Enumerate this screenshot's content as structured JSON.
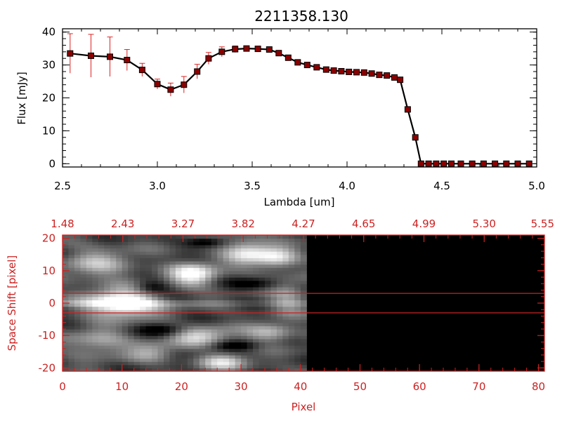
{
  "chart_data": [
    {
      "type": "line",
      "title": "2211358.130",
      "xlabel": "Lambda [um]",
      "ylabel": "Flux [mJy]",
      "xlim": [
        2.5,
        5.0
      ],
      "ylim": [
        -1,
        41
      ],
      "x_ticks": [
        "2.5",
        "3.0",
        "3.5",
        "4.0",
        "4.5",
        "5.0"
      ],
      "y_ticks": [
        "0",
        "10",
        "20",
        "30",
        "40"
      ],
      "grid": false,
      "colors": {
        "line": "#000000",
        "marker": "#8b0000",
        "errorbar": "#dd2222"
      },
      "series": [
        {
          "x": [
            2.54,
            2.65,
            2.75,
            2.84,
            2.92,
            3.0,
            3.07,
            3.14,
            3.21,
            3.27,
            3.34,
            3.41,
            3.47,
            3.53,
            3.59,
            3.64,
            3.69,
            3.74,
            3.79,
            3.84,
            3.89,
            3.93,
            3.97,
            4.01,
            4.05,
            4.09,
            4.13,
            4.17,
            4.21,
            4.25,
            4.28,
            4.32,
            4.36,
            4.39,
            4.43,
            4.47,
            4.51,
            4.55,
            4.6,
            4.66,
            4.72,
            4.78,
            4.84,
            4.9,
            4.96
          ],
          "y": [
            33.5,
            32.8,
            32.5,
            31.5,
            28.5,
            24.2,
            22.5,
            24.0,
            28.0,
            32.0,
            34.0,
            34.8,
            35.0,
            34.9,
            34.7,
            33.6,
            32.2,
            30.8,
            30.0,
            29.3,
            28.6,
            28.3,
            28.1,
            27.9,
            27.8,
            27.7,
            27.4,
            27.0,
            26.8,
            26.2,
            25.5,
            16.5,
            8.0,
            0.0,
            0.0,
            0.0,
            0.0,
            0.0,
            0.0,
            0.0,
            0.0,
            0.0,
            0.0,
            0.0,
            0.0
          ],
          "err": [
            6,
            6.5,
            6,
            3.2,
            2,
            1.5,
            2,
            2.5,
            2.2,
            1.8,
            1.5,
            1.0,
            0.6,
            0.5,
            0.5,
            0.5,
            0.5,
            0.4,
            0.4,
            0.4,
            0.4,
            0.4,
            0.4,
            0.4,
            0.4,
            0.4,
            0.4,
            0.4,
            0.4,
            0.4,
            0.4,
            0.4,
            0.4,
            0.3,
            0.3,
            0.3,
            0.3,
            0.3,
            0.3,
            0.3,
            0.3,
            0.3,
            0.3,
            0.3,
            0.3
          ]
        }
      ]
    },
    {
      "type": "heatmap",
      "xlabel": "Pixel",
      "ylabel": "Space Shift [pixel]",
      "xlim": [
        0,
        81
      ],
      "ylim": [
        -21,
        21
      ],
      "x_ticks": [
        "0",
        "10",
        "20",
        "30",
        "40",
        "50",
        "60",
        "70",
        "80"
      ],
      "y_ticks": [
        "-20",
        "-10",
        "0",
        "10",
        "20"
      ],
      "top_axis_ticks": [
        "1.48",
        "2.43",
        "3.27",
        "3.82",
        "4.27",
        "4.65",
        "4.99",
        "5.30",
        "5.55"
      ],
      "guide_lines_y": [
        3,
        -3
      ],
      "data_columns": 41,
      "blobs": [
        {
          "x": 10,
          "y": 0,
          "rx": 6,
          "ry": 4,
          "level": 1.0
        },
        {
          "x": 22,
          "y": 9,
          "rx": 4,
          "ry": 3.5,
          "level": 0.75
        },
        {
          "x": 31,
          "y": 16,
          "rx": 4,
          "ry": 4,
          "level": 0.6
        },
        {
          "x": 36,
          "y": 14,
          "rx": 3.5,
          "ry": 3.5,
          "level": 0.55
        },
        {
          "x": 23,
          "y": -10,
          "rx": 5,
          "ry": 3,
          "level": 0.55
        },
        {
          "x": 27,
          "y": -18,
          "rx": 4,
          "ry": 2.5,
          "level": 0.55
        },
        {
          "x": 6,
          "y": 12,
          "rx": 6,
          "ry": 5,
          "level": 0.4
        },
        {
          "x": 6,
          "y": -12,
          "rx": 5,
          "ry": 4,
          "level": 0.4
        },
        {
          "x": 35,
          "y": -9,
          "rx": 4,
          "ry": 3,
          "level": 0.45
        },
        {
          "x": 15,
          "y": -15,
          "rx": 4,
          "ry": 3,
          "level": 0.35
        },
        {
          "x": 38,
          "y": 2,
          "rx": 3,
          "ry": 5,
          "level": 0.35
        }
      ],
      "dark_patches": [
        {
          "x": 15,
          "y": 5,
          "rx": 3,
          "ry": 2
        },
        {
          "x": 17,
          "y": -8,
          "rx": 4,
          "ry": 2
        },
        {
          "x": 32,
          "y": 6,
          "rx": 4,
          "ry": 2
        },
        {
          "x": 29,
          "y": -13,
          "rx": 4,
          "ry": 1.5
        },
        {
          "x": 24,
          "y": 19,
          "rx": 3,
          "ry": 1.5
        }
      ],
      "colors": {
        "axes": "#cc2222",
        "guide_lines": "#cc2222",
        "background": "#000000"
      }
    }
  ]
}
